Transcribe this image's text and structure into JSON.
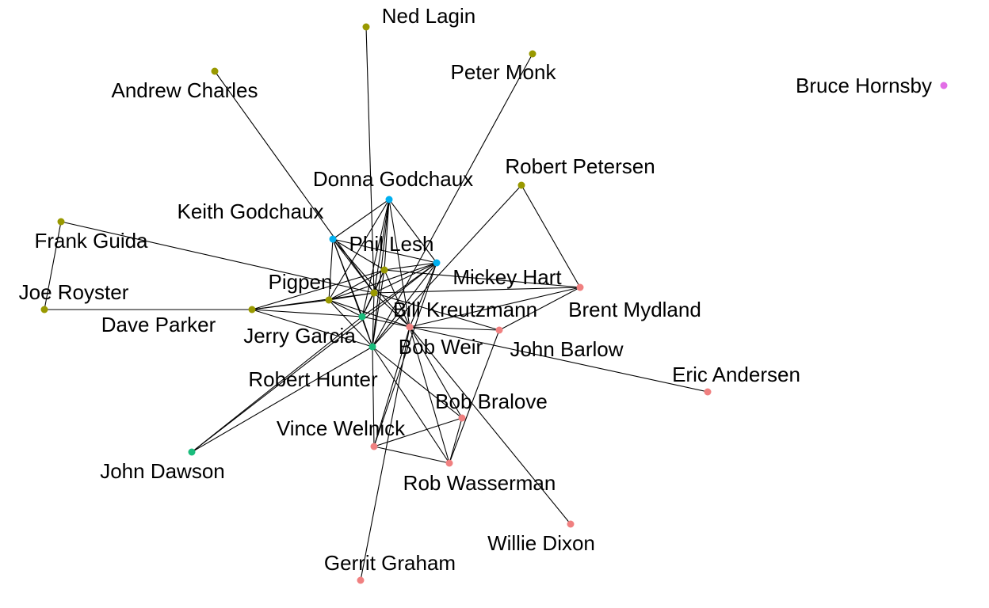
{
  "colors": {
    "c1": "#999900",
    "c2": "#00b0f0",
    "c3": "#1abc7c",
    "c4": "#f08080",
    "c5": "#e26ee6"
  },
  "nodes": [
    {
      "id": "ned",
      "label": "Ned Lagin",
      "group": "c1"
    },
    {
      "id": "peter",
      "label": "Peter Monk",
      "group": "c1"
    },
    {
      "id": "andrew",
      "label": "Andrew Charles",
      "group": "c1"
    },
    {
      "id": "bruce",
      "label": "Bruce Hornsby",
      "group": "c5"
    },
    {
      "id": "robpet",
      "label": "Robert Petersen",
      "group": "c1"
    },
    {
      "id": "donna",
      "label": "Donna Godchaux",
      "group": "c2"
    },
    {
      "id": "keith",
      "label": "Keith Godchaux",
      "group": "c2"
    },
    {
      "id": "frank",
      "label": "Frank Guida",
      "group": "c1"
    },
    {
      "id": "phil",
      "label": "Phil Lesh",
      "group": "c1"
    },
    {
      "id": "mickey",
      "label": "Mickey Hart",
      "group": "c2"
    },
    {
      "id": "pigpen",
      "label": "Pigpen",
      "group": "c1"
    },
    {
      "id": "joe",
      "label": "Joe Royster",
      "group": "c1"
    },
    {
      "id": "dave",
      "label": "Dave Parker",
      "group": "c1"
    },
    {
      "id": "jerry",
      "label": "Jerry Garcia",
      "group": "c1"
    },
    {
      "id": "bill",
      "label": "Bill Kreutzmann",
      "group": "c3"
    },
    {
      "id": "brent",
      "label": "Brent Mydland",
      "group": "c4"
    },
    {
      "id": "bobweir",
      "label": "Bob Weir",
      "group": "c4"
    },
    {
      "id": "barlow",
      "label": "John Barlow",
      "group": "c4"
    },
    {
      "id": "hunter",
      "label": "Robert Hunter",
      "group": "c3"
    },
    {
      "id": "eric",
      "label": "Eric Andersen",
      "group": "c4"
    },
    {
      "id": "bralove",
      "label": "Bob Bralove",
      "group": "c4"
    },
    {
      "id": "vince",
      "label": "Vince Welnick",
      "group": "c4"
    },
    {
      "id": "dawson",
      "label": "John Dawson",
      "group": "c3"
    },
    {
      "id": "wasserman",
      "label": "Rob Wasserman",
      "group": "c4"
    },
    {
      "id": "willie",
      "label": "Willie Dixon",
      "group": "c4"
    },
    {
      "id": "gerrit",
      "label": "Gerrit Graham",
      "group": "c4"
    }
  ],
  "edges": [
    [
      "ned",
      "jerry"
    ],
    [
      "peter",
      "hunter"
    ],
    [
      "andrew",
      "jerry"
    ],
    [
      "robpet",
      "brent"
    ],
    [
      "robpet",
      "hunter"
    ],
    [
      "donna",
      "keith"
    ],
    [
      "donna",
      "phil"
    ],
    [
      "donna",
      "mickey"
    ],
    [
      "donna",
      "pigpen"
    ],
    [
      "donna",
      "jerry"
    ],
    [
      "donna",
      "bill"
    ],
    [
      "donna",
      "bobweir"
    ],
    [
      "donna",
      "hunter"
    ],
    [
      "keith",
      "phil"
    ],
    [
      "keith",
      "mickey"
    ],
    [
      "keith",
      "pigpen"
    ],
    [
      "keith",
      "jerry"
    ],
    [
      "keith",
      "bill"
    ],
    [
      "keith",
      "bobweir"
    ],
    [
      "keith",
      "hunter"
    ],
    [
      "frank",
      "joe"
    ],
    [
      "frank",
      "jerry"
    ],
    [
      "joe",
      "dave"
    ],
    [
      "dave",
      "phil"
    ],
    [
      "dave",
      "pigpen"
    ],
    [
      "dave",
      "jerry"
    ],
    [
      "dave",
      "bill"
    ],
    [
      "dave",
      "hunter"
    ],
    [
      "phil",
      "mickey"
    ],
    [
      "phil",
      "pigpen"
    ],
    [
      "phil",
      "jerry"
    ],
    [
      "phil",
      "bill"
    ],
    [
      "phil",
      "bobweir"
    ],
    [
      "phil",
      "hunter"
    ],
    [
      "phil",
      "brent"
    ],
    [
      "mickey",
      "pigpen"
    ],
    [
      "mickey",
      "jerry"
    ],
    [
      "mickey",
      "bill"
    ],
    [
      "mickey",
      "bobweir"
    ],
    [
      "mickey",
      "hunter"
    ],
    [
      "mickey",
      "dawson"
    ],
    [
      "mickey",
      "vince"
    ],
    [
      "pigpen",
      "jerry"
    ],
    [
      "pigpen",
      "bill"
    ],
    [
      "pigpen",
      "bobweir"
    ],
    [
      "pigpen",
      "hunter"
    ],
    [
      "jerry",
      "bill"
    ],
    [
      "jerry",
      "bobweir"
    ],
    [
      "jerry",
      "hunter"
    ],
    [
      "jerry",
      "brent"
    ],
    [
      "jerry",
      "barlow"
    ],
    [
      "bill",
      "bobweir"
    ],
    [
      "bill",
      "hunter"
    ],
    [
      "bill",
      "dawson"
    ],
    [
      "bobweir",
      "barlow"
    ],
    [
      "bobweir",
      "brent"
    ],
    [
      "bobweir",
      "eric"
    ],
    [
      "bobweir",
      "bralove"
    ],
    [
      "bobweir",
      "vince"
    ],
    [
      "bobweir",
      "wasserman"
    ],
    [
      "bobweir",
      "willie"
    ],
    [
      "bobweir",
      "gerrit"
    ],
    [
      "hunter",
      "dawson"
    ],
    [
      "hunter",
      "bralove"
    ],
    [
      "hunter",
      "wasserman"
    ],
    [
      "hunter",
      "vince"
    ],
    [
      "barlow",
      "brent"
    ],
    [
      "barlow",
      "wasserman"
    ],
    [
      "vince",
      "wasserman"
    ],
    [
      "vince",
      "bralove"
    ],
    [
      "bralove",
      "wasserman"
    ]
  ]
}
